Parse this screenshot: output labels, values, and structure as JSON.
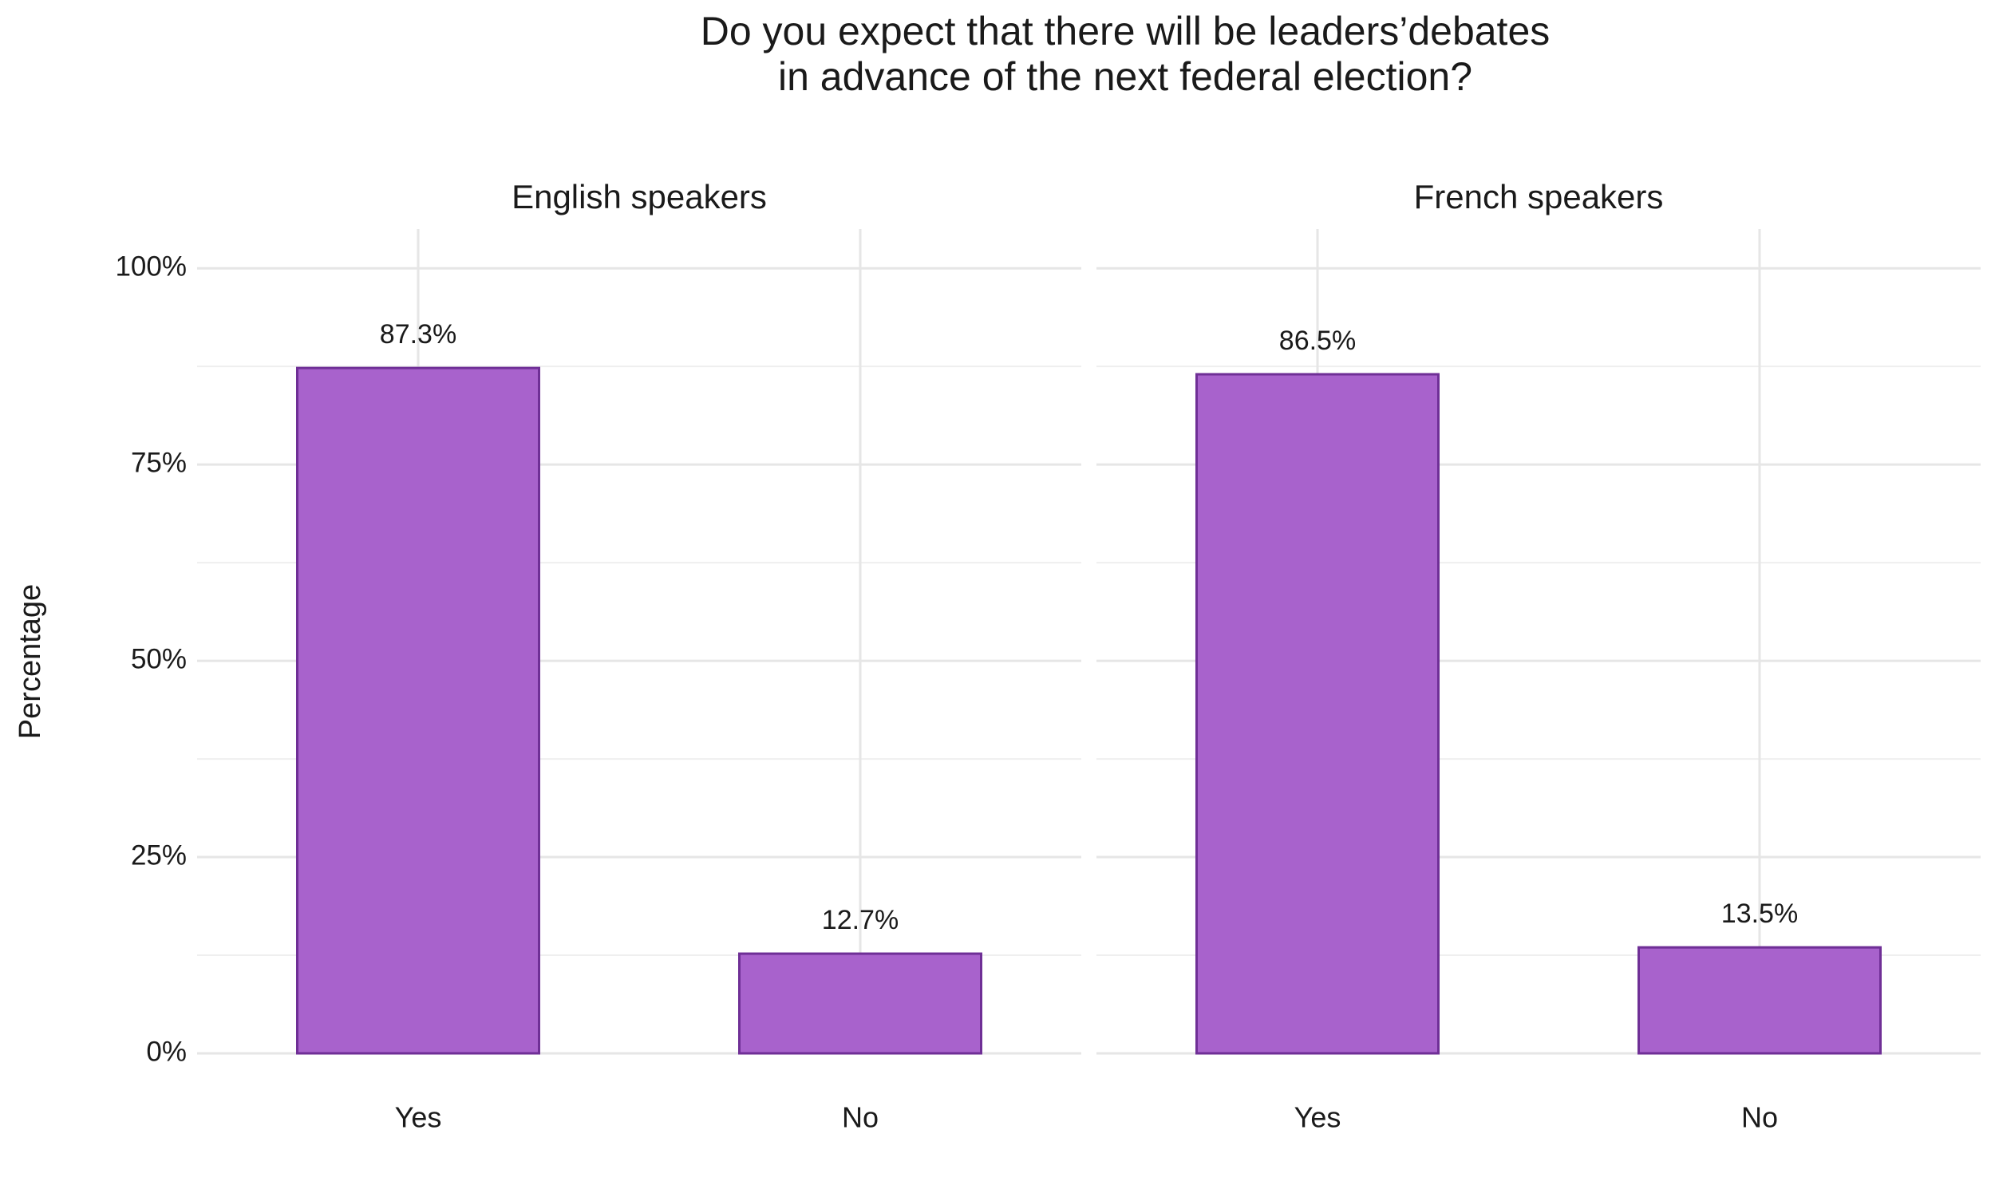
{
  "title_lines": [
    "Do you expect that there will be leaders’debates",
    "in advance of the next federal election?"
  ],
  "y_label": "Percentage",
  "chart_data": [
    {
      "type": "bar",
      "title": "English speakers",
      "categories": [
        "Yes",
        "No"
      ],
      "values": [
        87.3,
        12.7
      ],
      "value_labels": [
        "87.3%",
        "12.7%"
      ],
      "color": "#a862cc",
      "edge_color": "#6f2f96",
      "ylim": [
        0,
        105
      ],
      "yticks": [
        {
          "value": 0,
          "label": "0%"
        },
        {
          "value": 25,
          "label": "25%"
        },
        {
          "value": 50,
          "label": "50%"
        },
        {
          "value": 75,
          "label": "75%"
        },
        {
          "value": 100,
          "label": "100%"
        }
      ],
      "minor_yticks": [
        12.5,
        37.5,
        62.5,
        87.5
      ],
      "grid": true
    },
    {
      "type": "bar",
      "title": "French speakers",
      "categories": [
        "Yes",
        "No"
      ],
      "values": [
        86.5,
        13.5
      ],
      "value_labels": [
        "86.5%",
        "13.5%"
      ],
      "color": "#a862cc",
      "edge_color": "#6f2f96",
      "ylim": [
        0,
        105
      ],
      "yticks": [
        {
          "value": 0,
          "label": "0%"
        },
        {
          "value": 25,
          "label": "25%"
        },
        {
          "value": 50,
          "label": "50%"
        },
        {
          "value": 75,
          "label": "75%"
        },
        {
          "value": 100,
          "label": "100%"
        }
      ],
      "minor_yticks": [
        12.5,
        37.5,
        62.5,
        87.5
      ],
      "grid": true
    }
  ]
}
